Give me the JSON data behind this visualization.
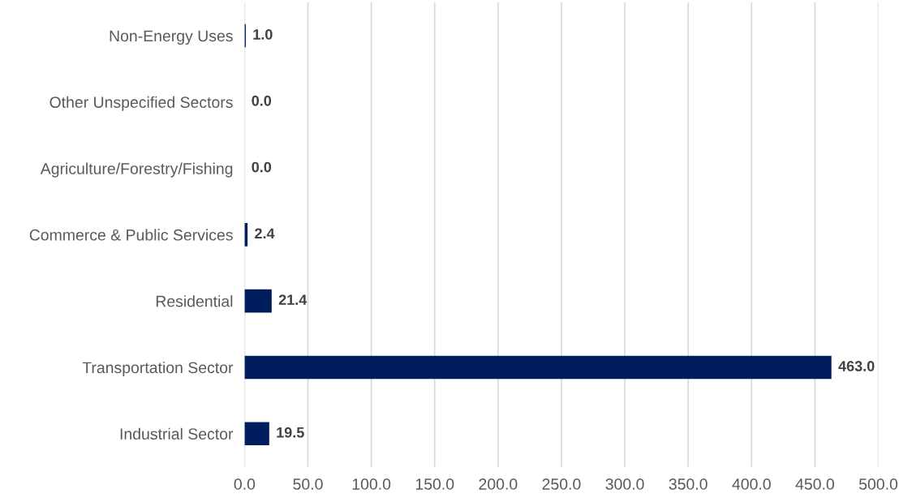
{
  "chart_data": {
    "type": "bar",
    "orientation": "horizontal",
    "categories": [
      "Non-Energy Uses",
      "Other Unspecified Sectors",
      "Agriculture/Forestry/Fishing",
      "Commerce & Public Services",
      "Residential",
      "Transportation Sector",
      "Industrial Sector"
    ],
    "values": [
      1.0,
      0.0,
      0.0,
      2.4,
      21.4,
      463.0,
      19.5
    ],
    "color": "#001d5e",
    "value_labels": [
      "1.0",
      "0.0",
      "0.0",
      "2.4",
      "21.4",
      "463.0",
      "19.5"
    ],
    "xlim": [
      0,
      500
    ],
    "xticks": [
      {
        "value": 0,
        "label": "0.0"
      },
      {
        "value": 50,
        "label": "50.0"
      },
      {
        "value": 100,
        "label": "100.0"
      },
      {
        "value": 150,
        "label": "150.0"
      },
      {
        "value": 200,
        "label": "200.0"
      },
      {
        "value": 250,
        "label": "250.0"
      },
      {
        "value": 300,
        "label": "300.0"
      },
      {
        "value": 350,
        "label": "350.0"
      },
      {
        "value": 400,
        "label": "400.0"
      },
      {
        "value": 450,
        "label": "450.0"
      },
      {
        "value": 500,
        "label": "500.0"
      }
    ],
    "grid": "x"
  }
}
